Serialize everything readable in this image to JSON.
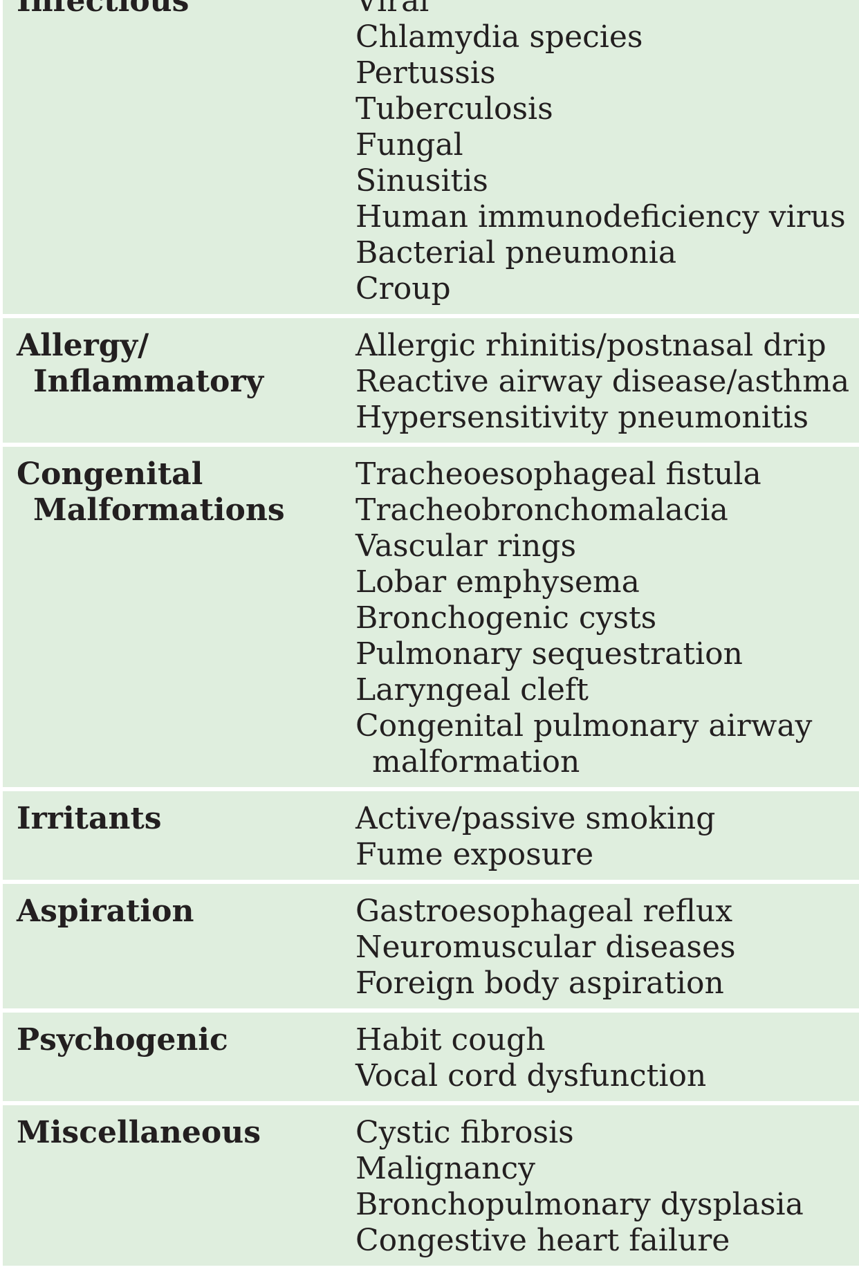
{
  "rows": [
    {
      "category": [
        "Infectious"
      ],
      "items": [
        [
          "Viral"
        ],
        [
          "Chlamydia species"
        ],
        [
          "Pertussis"
        ],
        [
          "Tuberculosis"
        ],
        [
          "Fungal"
        ],
        [
          "Sinusitis"
        ],
        [
          "Human immunodeficiency virus"
        ],
        [
          "Bacterial pneumonia"
        ],
        [
          "Croup"
        ]
      ]
    },
    {
      "category": [
        "Allergy/",
        "Inflammatory"
      ],
      "items": [
        [
          "Allergic rhinitis/postnasal drip"
        ],
        [
          "Reactive airway disease/asthma"
        ],
        [
          "Hypersensitivity pneumonitis"
        ]
      ]
    },
    {
      "category": [
        "Congenital",
        "Malformations"
      ],
      "items": [
        [
          "Tracheoesophageal fistula"
        ],
        [
          "Tracheobronchomalacia"
        ],
        [
          "Vascular rings"
        ],
        [
          "Lobar emphysema"
        ],
        [
          "Bronchogenic cysts"
        ],
        [
          "Pulmonary sequestration"
        ],
        [
          "Laryngeal cleft"
        ],
        [
          "Congenital pulmonary airway",
          "malformation"
        ]
      ]
    },
    {
      "category": [
        "Irritants"
      ],
      "items": [
        [
          "Active/passive smoking"
        ],
        [
          "Fume exposure"
        ]
      ]
    },
    {
      "category": [
        "Aspiration"
      ],
      "items": [
        [
          "Gastroesophageal reflux"
        ],
        [
          "Neuromuscular diseases"
        ],
        [
          "Foreign body aspiration"
        ]
      ]
    },
    {
      "category": [
        "Psychogenic"
      ],
      "items": [
        [
          "Habit cough"
        ],
        [
          "Vocal cord dysfunction"
        ]
      ]
    },
    {
      "category": [
        "Miscellaneous"
      ],
      "items": [
        [
          "Cystic fibrosis"
        ],
        [
          "Malignancy"
        ],
        [
          "Bronchopulmonary dysplasia"
        ],
        [
          "Congestive heart failure"
        ]
      ]
    }
  ]
}
